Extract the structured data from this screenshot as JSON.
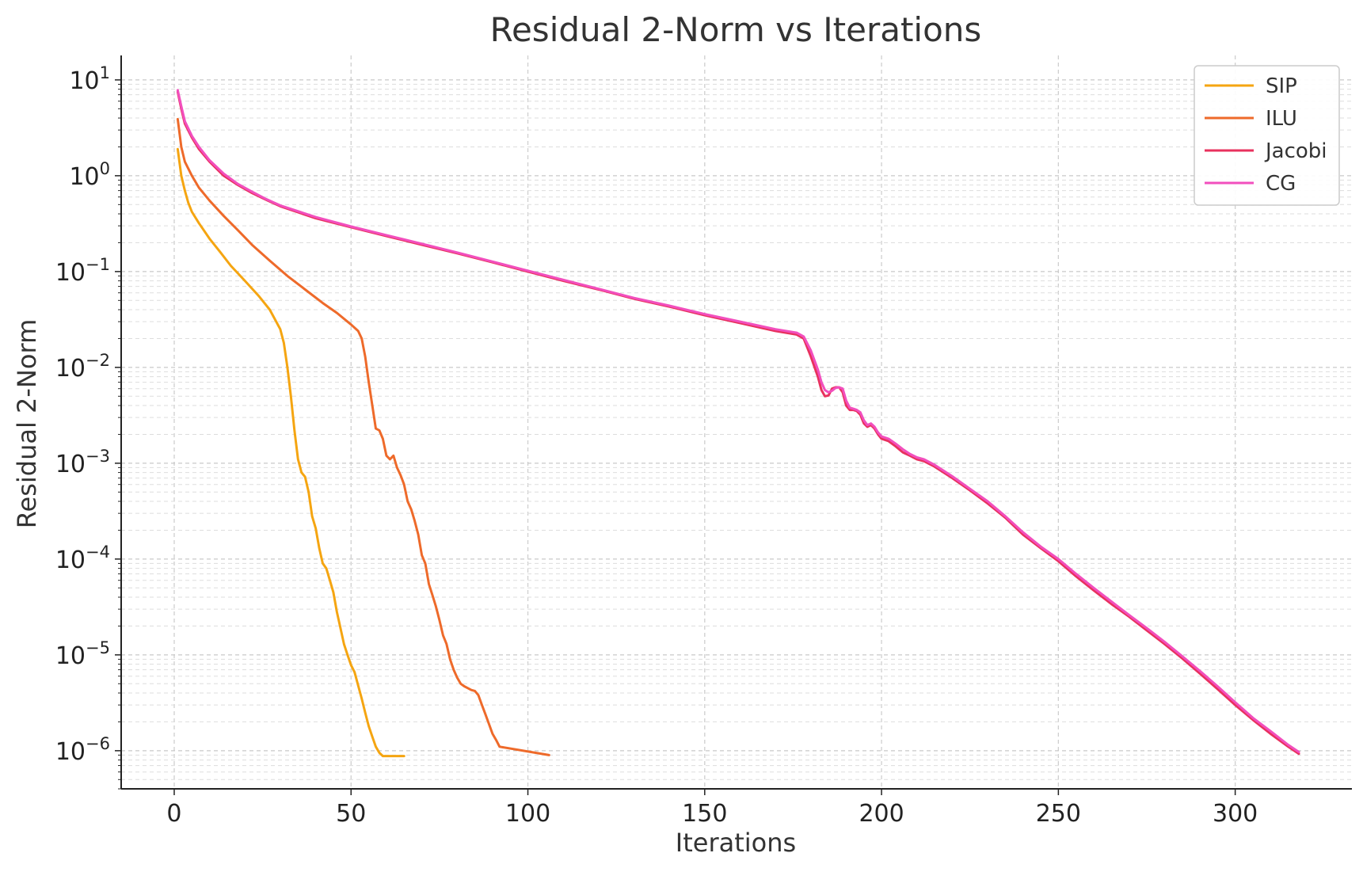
{
  "chart_data": {
    "type": "line",
    "title": "Residual 2-Norm vs Iterations",
    "xlabel": "Iterations",
    "ylabel": "Residual 2-Norm",
    "xlim": [
      -15,
      333
    ],
    "ylim": [
      4e-07,
      18
    ],
    "yscale": "log",
    "grid": true,
    "legend_position": "top-right",
    "xticks": [
      0,
      50,
      100,
      150,
      200,
      250,
      300
    ],
    "yticks": [
      {
        "value": 10,
        "base": "10",
        "exp": "1"
      },
      {
        "value": 1,
        "base": "10",
        "exp": "0"
      },
      {
        "value": 0.1,
        "base": "10",
        "exp": "−1"
      },
      {
        "value": 0.01,
        "base": "10",
        "exp": "−2"
      },
      {
        "value": 0.001,
        "base": "10",
        "exp": "−3"
      },
      {
        "value": 0.0001,
        "base": "10",
        "exp": "−4"
      },
      {
        "value": 1e-05,
        "base": "10",
        "exp": "−5"
      },
      {
        "value": 1e-06,
        "base": "10",
        "exp": "−6"
      }
    ],
    "series": [
      {
        "name": "SIP",
        "color": "#f5a511",
        "points": [
          [
            1,
            1.9
          ],
          [
            2,
            1.0
          ],
          [
            3,
            0.7
          ],
          [
            4,
            0.52
          ],
          [
            5,
            0.42
          ],
          [
            7,
            0.32
          ],
          [
            10,
            0.22
          ],
          [
            13,
            0.16
          ],
          [
            16,
            0.115
          ],
          [
            20,
            0.08
          ],
          [
            24,
            0.055
          ],
          [
            27,
            0.04
          ],
          [
            30,
            0.025
          ],
          [
            31,
            0.018
          ],
          [
            32,
            0.01
          ],
          [
            33,
            0.005
          ],
          [
            34,
            0.0022
          ],
          [
            35,
            0.0011
          ],
          [
            36,
            0.0008
          ],
          [
            37,
            0.00072
          ],
          [
            38,
            0.0005
          ],
          [
            39,
            0.00028
          ],
          [
            40,
            0.00021
          ],
          [
            41,
            0.00013
          ],
          [
            42,
            9e-05
          ],
          [
            43,
            8e-05
          ],
          [
            44,
            6e-05
          ],
          [
            45,
            4.5e-05
          ],
          [
            46,
            2.8e-05
          ],
          [
            47,
            1.9e-05
          ],
          [
            48,
            1.3e-05
          ],
          [
            49,
            1e-05
          ],
          [
            50,
            7.8e-06
          ],
          [
            51,
            6.6e-06
          ],
          [
            52,
            4.8e-06
          ],
          [
            53,
            3.5e-06
          ],
          [
            54,
            2.5e-06
          ],
          [
            55,
            1.8e-06
          ],
          [
            56,
            1.4e-06
          ],
          [
            57,
            1.1e-06
          ],
          [
            58,
            9.5e-07
          ],
          [
            59,
            8.8e-07
          ],
          [
            65,
            8.8e-07
          ]
        ]
      },
      {
        "name": "ILU",
        "color": "#ee6a2a",
        "points": [
          [
            1,
            3.9
          ],
          [
            2,
            2.0
          ],
          [
            3,
            1.4
          ],
          [
            5,
            1.0
          ],
          [
            7,
            0.75
          ],
          [
            10,
            0.55
          ],
          [
            14,
            0.38
          ],
          [
            18,
            0.27
          ],
          [
            22,
            0.19
          ],
          [
            27,
            0.13
          ],
          [
            32,
            0.09
          ],
          [
            37,
            0.065
          ],
          [
            42,
            0.047
          ],
          [
            46,
            0.037
          ],
          [
            50,
            0.028
          ],
          [
            52,
            0.024
          ],
          [
            53,
            0.02
          ],
          [
            54,
            0.013
          ],
          [
            55,
            0.007
          ],
          [
            56,
            0.004
          ],
          [
            57,
            0.0023
          ],
          [
            58,
            0.0022
          ],
          [
            59,
            0.0018
          ],
          [
            60,
            0.0012
          ],
          [
            61,
            0.0011
          ],
          [
            62,
            0.0012
          ],
          [
            63,
            0.0009
          ],
          [
            64,
            0.00075
          ],
          [
            65,
            0.0006
          ],
          [
            66,
            0.0004
          ],
          [
            67,
            0.00033
          ],
          [
            68,
            0.00025
          ],
          [
            69,
            0.00018
          ],
          [
            70,
            0.00011
          ],
          [
            71,
            9e-05
          ],
          [
            72,
            5.5e-05
          ],
          [
            73,
            4.2e-05
          ],
          [
            74,
            3.2e-05
          ],
          [
            75,
            2.3e-05
          ],
          [
            76,
            1.6e-05
          ],
          [
            77,
            1.3e-05
          ],
          [
            78,
            9e-06
          ],
          [
            79,
            7e-06
          ],
          [
            80,
            5.8e-06
          ],
          [
            81,
            5e-06
          ],
          [
            82,
            4.7e-06
          ],
          [
            83,
            4.5e-06
          ],
          [
            84,
            4.3e-06
          ],
          [
            85,
            4.2e-06
          ],
          [
            86,
            3.8e-06
          ],
          [
            87,
            3e-06
          ],
          [
            88,
            2.4e-06
          ],
          [
            89,
            1.9e-06
          ],
          [
            90,
            1.5e-06
          ],
          [
            91,
            1.3e-06
          ],
          [
            92,
            1.1e-06
          ],
          [
            106,
            9e-07
          ]
        ]
      },
      {
        "name": "Jacobi",
        "color": "#e8315e",
        "points": [
          [
            1,
            7.5
          ],
          [
            2,
            5.0
          ],
          [
            3,
            3.5
          ],
          [
            5,
            2.5
          ],
          [
            7,
            1.9
          ],
          [
            10,
            1.4
          ],
          [
            14,
            1.0
          ],
          [
            18,
            0.8
          ],
          [
            22,
            0.66
          ],
          [
            26,
            0.56
          ],
          [
            30,
            0.48
          ],
          [
            40,
            0.36
          ],
          [
            50,
            0.29
          ],
          [
            60,
            0.235
          ],
          [
            70,
            0.19
          ],
          [
            80,
            0.155
          ],
          [
            90,
            0.125
          ],
          [
            100,
            0.1
          ],
          [
            110,
            0.08
          ],
          [
            120,
            0.065
          ],
          [
            130,
            0.052
          ],
          [
            140,
            0.043
          ],
          [
            150,
            0.035
          ],
          [
            160,
            0.029
          ],
          [
            170,
            0.024
          ],
          [
            176,
            0.022
          ],
          [
            178,
            0.02
          ],
          [
            180,
            0.013
          ],
          [
            182,
            0.008
          ],
          [
            183,
            0.0058
          ],
          [
            184,
            0.005
          ],
          [
            185,
            0.0051
          ],
          [
            186,
            0.006
          ],
          [
            187,
            0.0062
          ],
          [
            188,
            0.0062
          ],
          [
            189,
            0.0055
          ],
          [
            190,
            0.004
          ],
          [
            191,
            0.0036
          ],
          [
            192,
            0.0036
          ],
          [
            193,
            0.0035
          ],
          [
            194,
            0.0032
          ],
          [
            195,
            0.0026
          ],
          [
            196,
            0.0024
          ],
          [
            197,
            0.0025
          ],
          [
            198,
            0.0023
          ],
          [
            199,
            0.002
          ],
          [
            200,
            0.0018
          ],
          [
            202,
            0.0017
          ],
          [
            204,
            0.0015
          ],
          [
            206,
            0.0013
          ],
          [
            208,
            0.0012
          ],
          [
            210,
            0.0011
          ],
          [
            212,
            0.00105
          ],
          [
            215,
            0.00092
          ],
          [
            220,
            0.0007
          ],
          [
            225,
            0.00052
          ],
          [
            230,
            0.00038
          ],
          [
            235,
            0.00027
          ],
          [
            240,
            0.00018
          ],
          [
            245,
            0.00013
          ],
          [
            250,
            9.5e-05
          ],
          [
            255,
            6.6e-05
          ],
          [
            260,
            4.7e-05
          ],
          [
            265,
            3.4e-05
          ],
          [
            270,
            2.5e-05
          ],
          [
            275,
            1.8e-05
          ],
          [
            280,
            1.3e-05
          ],
          [
            285,
            9.2e-06
          ],
          [
            290,
            6.4e-06
          ],
          [
            295,
            4.4e-06
          ],
          [
            300,
            3e-06
          ],
          [
            305,
            2.1e-06
          ],
          [
            310,
            1.5e-06
          ],
          [
            315,
            1.1e-06
          ],
          [
            318,
            9.3e-07
          ]
        ]
      },
      {
        "name": "CG",
        "color": "#f24fbe",
        "points": [
          [
            1,
            7.8
          ],
          [
            2,
            5.3
          ],
          [
            3,
            3.7
          ],
          [
            5,
            2.6
          ],
          [
            7,
            2.0
          ],
          [
            10,
            1.45
          ],
          [
            14,
            1.05
          ],
          [
            18,
            0.82
          ],
          [
            22,
            0.68
          ],
          [
            26,
            0.57
          ],
          [
            30,
            0.49
          ],
          [
            40,
            0.37
          ],
          [
            50,
            0.295
          ],
          [
            60,
            0.24
          ],
          [
            70,
            0.195
          ],
          [
            80,
            0.158
          ],
          [
            90,
            0.127
          ],
          [
            100,
            0.102
          ],
          [
            110,
            0.082
          ],
          [
            120,
            0.066
          ],
          [
            130,
            0.053
          ],
          [
            140,
            0.044
          ],
          [
            150,
            0.036
          ],
          [
            160,
            0.03
          ],
          [
            170,
            0.025
          ],
          [
            176,
            0.023
          ],
          [
            178,
            0.021
          ],
          [
            180,
            0.015
          ],
          [
            182,
            0.0095
          ],
          [
            183,
            0.007
          ],
          [
            184,
            0.0058
          ],
          [
            185,
            0.0055
          ],
          [
            186,
            0.0057
          ],
          [
            187,
            0.0061
          ],
          [
            188,
            0.0062
          ],
          [
            189,
            0.006
          ],
          [
            190,
            0.0045
          ],
          [
            191,
            0.0038
          ],
          [
            192,
            0.0037
          ],
          [
            193,
            0.0036
          ],
          [
            194,
            0.0034
          ],
          [
            195,
            0.0028
          ],
          [
            196,
            0.0025
          ],
          [
            197,
            0.0026
          ],
          [
            198,
            0.0024
          ],
          [
            199,
            0.0021
          ],
          [
            200,
            0.0019
          ],
          [
            202,
            0.0018
          ],
          [
            204,
            0.0016
          ],
          [
            206,
            0.0014
          ],
          [
            208,
            0.00125
          ],
          [
            210,
            0.00115
          ],
          [
            212,
            0.0011
          ],
          [
            215,
            0.00096
          ],
          [
            220,
            0.00073
          ],
          [
            225,
            0.00054
          ],
          [
            230,
            0.0004
          ],
          [
            235,
            0.00028
          ],
          [
            240,
            0.00019
          ],
          [
            245,
            0.000135
          ],
          [
            250,
            0.0001
          ],
          [
            255,
            7e-05
          ],
          [
            260,
            5e-05
          ],
          [
            265,
            3.6e-05
          ],
          [
            270,
            2.6e-05
          ],
          [
            275,
            1.9e-05
          ],
          [
            280,
            1.37e-05
          ],
          [
            285,
            9.7e-06
          ],
          [
            290,
            6.8e-06
          ],
          [
            295,
            4.7e-06
          ],
          [
            300,
            3.2e-06
          ],
          [
            305,
            2.2e-06
          ],
          [
            310,
            1.6e-06
          ],
          [
            315,
            1.15e-06
          ],
          [
            318,
            9.7e-07
          ]
        ]
      }
    ]
  }
}
